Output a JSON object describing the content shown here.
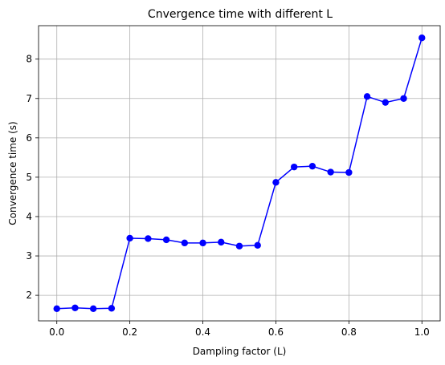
{
  "chart_data": {
    "type": "line",
    "title": "Cnvergence time with different L",
    "xlabel": "Dampling factor (L)",
    "ylabel": "Convergence time (s)",
    "xlim": [
      -0.05,
      1.05
    ],
    "ylim": [
      1.35,
      8.85
    ],
    "xticks": [
      0.0,
      0.2,
      0.4,
      0.6,
      0.8,
      1.0
    ],
    "xtick_labels": [
      "0.0",
      "0.2",
      "0.4",
      "0.6",
      "0.8",
      "1.0"
    ],
    "yticks": [
      2,
      3,
      4,
      5,
      6,
      7,
      8
    ],
    "ytick_labels": [
      "2",
      "3",
      "4",
      "5",
      "6",
      "7",
      "8"
    ],
    "grid": true,
    "series": [
      {
        "color": "#0000ff",
        "marker": "circle",
        "x": [
          0.0,
          0.05,
          0.1,
          0.15,
          0.2,
          0.25,
          0.3,
          0.35,
          0.4,
          0.45,
          0.5,
          0.55,
          0.6,
          0.65,
          0.7,
          0.75,
          0.8,
          0.85,
          0.9,
          0.95,
          1.0
        ],
        "y": [
          1.66,
          1.68,
          1.66,
          1.67,
          3.45,
          3.44,
          3.41,
          3.33,
          3.33,
          3.35,
          3.25,
          3.27,
          4.87,
          5.26,
          5.28,
          5.13,
          5.12,
          7.05,
          6.9,
          7.0,
          8.54
        ]
      }
    ]
  }
}
